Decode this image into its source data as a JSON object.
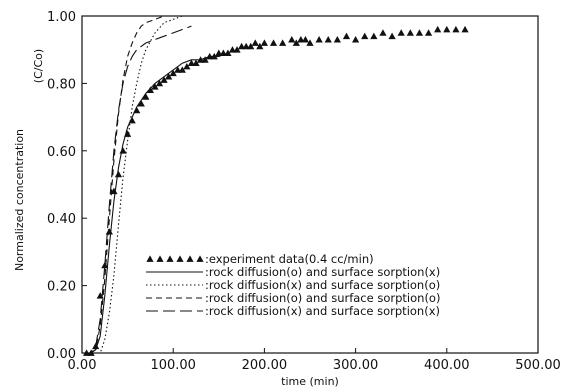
{
  "chart_data": {
    "type": "line",
    "title": "",
    "xlabel": "time (min)",
    "ylabel_text": "Normalized concentration",
    "ylabel_unit": "(C/Co)",
    "xlim": [
      0,
      500
    ],
    "ylim": [
      0,
      1
    ],
    "x_ticks": [
      0,
      100,
      200,
      300,
      400,
      500
    ],
    "x_tick_labels": [
      "0.00",
      "100.00",
      "200.00",
      "300.00",
      "400.00",
      "500.00"
    ],
    "y_ticks": [
      0,
      0.2,
      0.4,
      0.6,
      0.8,
      1.0
    ],
    "y_tick_labels": [
      "0.00",
      "0.20",
      "0.40",
      "0.60",
      "0.80",
      "1.00"
    ],
    "grid": false,
    "legend_position": "lower-right",
    "series": [
      {
        "name": ":experiment data(0.4 cc/min)",
        "kind": "markers",
        "marker": "filled-triangle",
        "x": [
          5,
          10,
          15,
          20,
          25,
          30,
          35,
          40,
          45,
          50,
          55,
          60,
          65,
          70,
          75,
          80,
          85,
          90,
          95,
          100,
          105,
          110,
          115,
          120,
          125,
          130,
          135,
          140,
          145,
          150,
          155,
          160,
          165,
          170,
          175,
          180,
          185,
          190,
          195,
          200,
          210,
          220,
          230,
          235,
          240,
          245,
          250,
          260,
          270,
          280,
          290,
          300,
          310,
          320,
          330,
          340,
          350,
          360,
          370,
          380,
          390,
          400,
          410,
          420
        ],
        "y": [
          0.0,
          0.0,
          0.02,
          0.17,
          0.26,
          0.36,
          0.48,
          0.53,
          0.6,
          0.65,
          0.69,
          0.72,
          0.74,
          0.76,
          0.78,
          0.79,
          0.8,
          0.81,
          0.82,
          0.83,
          0.84,
          0.84,
          0.85,
          0.86,
          0.86,
          0.87,
          0.87,
          0.88,
          0.88,
          0.89,
          0.89,
          0.89,
          0.9,
          0.9,
          0.91,
          0.91,
          0.91,
          0.92,
          0.91,
          0.92,
          0.92,
          0.92,
          0.93,
          0.92,
          0.93,
          0.93,
          0.92,
          0.93,
          0.93,
          0.93,
          0.94,
          0.93,
          0.94,
          0.94,
          0.95,
          0.94,
          0.95,
          0.95,
          0.95,
          0.95,
          0.96,
          0.96,
          0.96,
          0.96
        ]
      },
      {
        "name": ":rock diffusion(o) and surface sorption(x)",
        "kind": "line",
        "dash": "solid",
        "x": [
          0,
          10,
          15,
          20,
          25,
          30,
          35,
          40,
          45,
          50,
          55,
          60,
          70,
          80,
          90,
          100,
          110,
          120,
          130,
          140,
          150,
          160
        ],
        "y": [
          0,
          0,
          0.01,
          0.05,
          0.17,
          0.32,
          0.45,
          0.55,
          0.62,
          0.67,
          0.7,
          0.73,
          0.77,
          0.8,
          0.82,
          0.84,
          0.86,
          0.87,
          0.87,
          0.88,
          0.88,
          0.89
        ]
      },
      {
        "name": ":rock diffusion(x) and surface sorption(o)",
        "kind": "line",
        "dash": "dotted",
        "x": [
          0,
          20,
          25,
          30,
          35,
          40,
          45,
          50,
          55,
          60,
          65,
          70,
          80,
          90,
          100,
          110,
          120
        ],
        "y": [
          0,
          0,
          0.04,
          0.12,
          0.23,
          0.38,
          0.52,
          0.63,
          0.73,
          0.8,
          0.86,
          0.9,
          0.95,
          0.98,
          0.99,
          1.0,
          1.0
        ]
      },
      {
        "name": ":rock diffusion(o) and surface sorption(o)",
        "kind": "line",
        "dash": "short-dash",
        "x": [
          0,
          10,
          15,
          20,
          25,
          30,
          35,
          40,
          45,
          50,
          55,
          60,
          65,
          70,
          80,
          90,
          100,
          110
        ],
        "y": [
          0,
          0,
          0.01,
          0.08,
          0.22,
          0.4,
          0.57,
          0.71,
          0.81,
          0.88,
          0.92,
          0.95,
          0.97,
          0.98,
          0.99,
          1.0,
          1.0,
          1.0
        ]
      },
      {
        "name": ":rock diffusion(x) and surface sorption(x)",
        "kind": "line",
        "dash": "long-dash",
        "x": [
          0,
          10,
          15,
          20,
          25,
          30,
          35,
          40,
          45,
          50,
          55,
          60,
          70,
          80,
          90,
          100,
          110,
          120
        ],
        "y": [
          0,
          0,
          0.02,
          0.1,
          0.26,
          0.44,
          0.6,
          0.72,
          0.8,
          0.85,
          0.88,
          0.9,
          0.92,
          0.93,
          0.94,
          0.95,
          0.96,
          0.97
        ]
      }
    ]
  }
}
